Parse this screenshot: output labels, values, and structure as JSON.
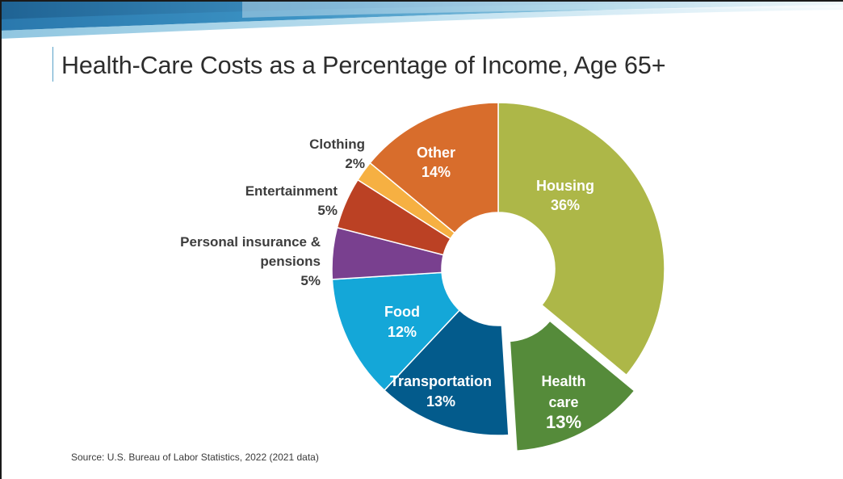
{
  "slide": {
    "title": "Health-Care Costs as a Percentage of Income, Age 65+",
    "source": "Source:  U.S. Bureau of Labor Statistics, 2022 (2021 data)"
  },
  "chart_data": {
    "type": "pie",
    "title": "Health-Care Costs as a Percentage of Income, Age 65+",
    "donut": true,
    "unit": "%",
    "slices": [
      {
        "key": "housing",
        "label": "Housing",
        "value": 36,
        "value_label": "36%",
        "color": "#adb748",
        "label_inside": true,
        "exploded": false
      },
      {
        "key": "health-care",
        "label": "Health care",
        "label_lines": [
          "Health",
          "care"
        ],
        "value": 13,
        "value_label": "13%",
        "color": "#558b3a",
        "label_inside": true,
        "exploded": true
      },
      {
        "key": "transportation",
        "label": "Transportation",
        "value": 13,
        "value_label": "13%",
        "color": "#035b8c",
        "label_inside": true,
        "exploded": false
      },
      {
        "key": "food",
        "label": "Food",
        "value": 12,
        "value_label": "12%",
        "color": "#14a7d8",
        "label_inside": true,
        "exploded": false
      },
      {
        "key": "personal-insurance",
        "label": "Personal insurance & pensions",
        "label_lines": [
          "Personal insurance &",
          "pensions"
        ],
        "value": 5,
        "value_label": "5%",
        "color": "#79408f",
        "label_inside": false,
        "exploded": false
      },
      {
        "key": "entertainment",
        "label": "Entertainment",
        "value": 5,
        "value_label": "5%",
        "color": "#bb4124",
        "label_inside": false,
        "exploded": false
      },
      {
        "key": "clothing",
        "label": "Clothing",
        "value": 2,
        "value_label": "2%",
        "color": "#f6b042",
        "label_inside": false,
        "exploded": false
      },
      {
        "key": "other",
        "label": "Other",
        "value": 14,
        "value_label": "14%",
        "color": "#d86d2c",
        "label_inside": true,
        "exploded": false
      }
    ]
  },
  "colors": {
    "banner_dark": "#2f7fb3",
    "banner_light": "#cfe8f3",
    "title_text": "#2d2d2d",
    "inside_label": "#ffffff",
    "outside_label": "#3d3d3d"
  }
}
